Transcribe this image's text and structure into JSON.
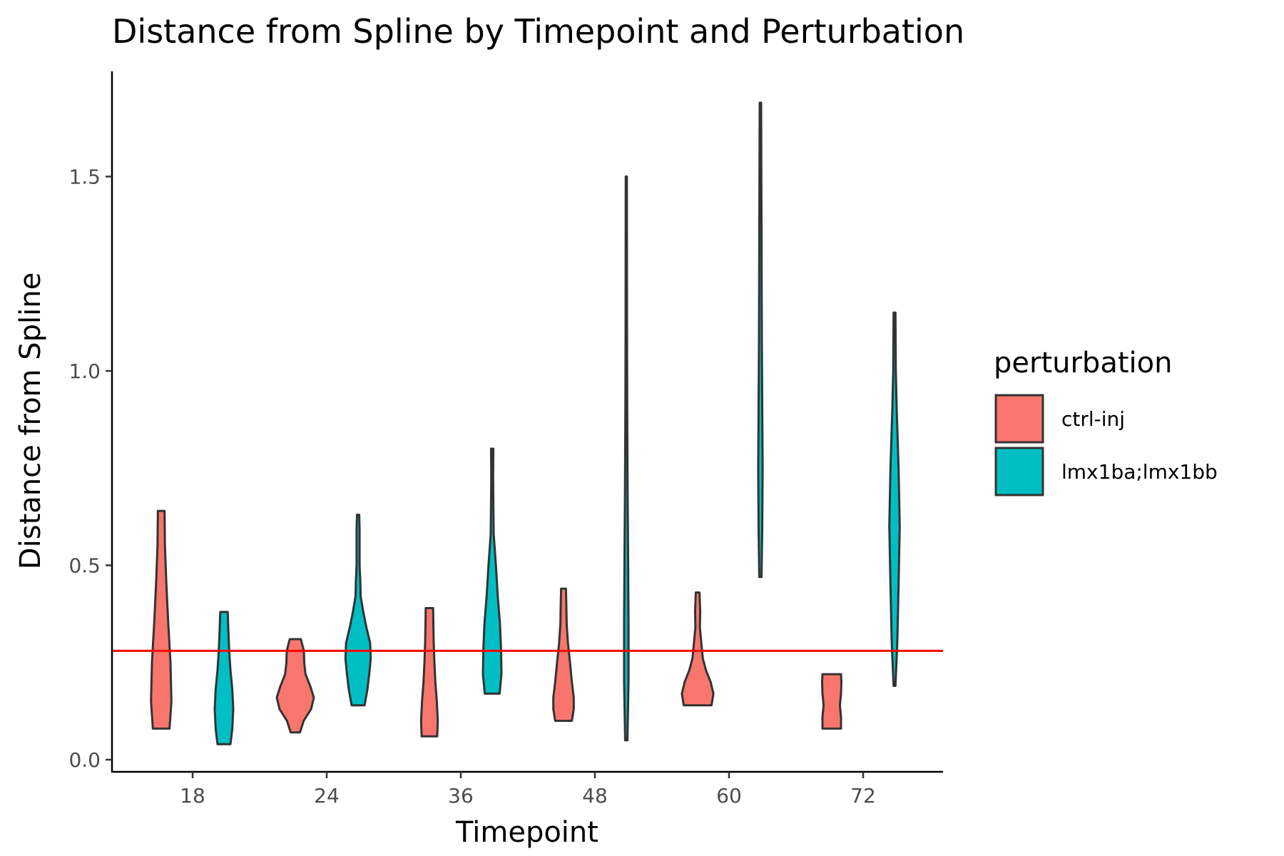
{
  "chart_data": {
    "type": "violin",
    "title": "Distance from Spline by Timepoint and Perturbation",
    "xlabel": "Timepoint",
    "ylabel": "Distance from Spline",
    "categories": [
      "18",
      "24",
      "36",
      "48",
      "60",
      "72"
    ],
    "y_ticks": [
      "0.0",
      "0.5",
      "1.0",
      "1.5"
    ],
    "ylim": [
      -0.03,
      1.77
    ],
    "grid": false,
    "reference_line": {
      "y": 0.28,
      "color": "#ff0000"
    },
    "legend": {
      "title": "perturbation",
      "position": "right",
      "entries": [
        {
          "label": "ctrl-inj",
          "color": "#f8766d"
        },
        {
          "label": "lmx1ba;lmx1bb",
          "color": "#00bfc4"
        }
      ]
    },
    "series": [
      {
        "name": "ctrl-inj",
        "color": "#f8766d",
        "violins": [
          {
            "category": "18",
            "min": 0.08,
            "max": 0.64,
            "profile": [
              [
                0.08,
                0.45
              ],
              [
                0.15,
                0.55
              ],
              [
                0.25,
                0.5
              ],
              [
                0.35,
                0.38
              ],
              [
                0.45,
                0.28
              ],
              [
                0.55,
                0.2
              ],
              [
                0.64,
                0.18
              ]
            ]
          },
          {
            "category": "24",
            "min": 0.07,
            "max": 0.31,
            "profile": [
              [
                0.07,
                0.25
              ],
              [
                0.1,
                0.45
              ],
              [
                0.13,
                0.85
              ],
              [
                0.16,
                1.0
              ],
              [
                0.19,
                0.8
              ],
              [
                0.22,
                0.55
              ],
              [
                0.25,
                0.48
              ],
              [
                0.28,
                0.46
              ],
              [
                0.31,
                0.3
              ]
            ]
          },
          {
            "category": "36",
            "min": 0.06,
            "max": 0.39,
            "profile": [
              [
                0.06,
                0.42
              ],
              [
                0.1,
                0.45
              ],
              [
                0.15,
                0.4
              ],
              [
                0.2,
                0.32
              ],
              [
                0.25,
                0.27
              ],
              [
                0.3,
                0.23
              ],
              [
                0.35,
                0.21
              ],
              [
                0.39,
                0.2
              ]
            ]
          },
          {
            "category": "48",
            "min": 0.1,
            "max": 0.44,
            "profile": [
              [
                0.1,
                0.45
              ],
              [
                0.13,
                0.55
              ],
              [
                0.16,
                0.55
              ],
              [
                0.2,
                0.45
              ],
              [
                0.25,
                0.35
              ],
              [
                0.3,
                0.24
              ],
              [
                0.35,
                0.17
              ],
              [
                0.4,
                0.15
              ],
              [
                0.44,
                0.13
              ]
            ]
          },
          {
            "category": "60",
            "min": 0.14,
            "max": 0.43,
            "profile": [
              [
                0.14,
                0.75
              ],
              [
                0.17,
                0.85
              ],
              [
                0.2,
                0.7
              ],
              [
                0.23,
                0.45
              ],
              [
                0.26,
                0.28
              ],
              [
                0.3,
                0.2
              ],
              [
                0.34,
                0.12
              ],
              [
                0.38,
                0.14
              ],
              [
                0.43,
                0.1
              ]
            ]
          },
          {
            "category": "72",
            "min": 0.08,
            "max": 0.22,
            "profile": [
              [
                0.08,
                0.5
              ],
              [
                0.11,
                0.5
              ],
              [
                0.14,
                0.44
              ],
              [
                0.17,
                0.5
              ],
              [
                0.2,
                0.52
              ],
              [
                0.22,
                0.5
              ]
            ]
          }
        ]
      },
      {
        "name": "lmx1ba;lmx1bb",
        "color": "#00bfc4",
        "violins": [
          {
            "category": "18",
            "min": 0.04,
            "max": 0.38,
            "profile": [
              [
                0.04,
                0.35
              ],
              [
                0.08,
                0.45
              ],
              [
                0.13,
                0.5
              ],
              [
                0.18,
                0.45
              ],
              [
                0.23,
                0.35
              ],
              [
                0.28,
                0.28
              ],
              [
                0.33,
                0.24
              ],
              [
                0.38,
                0.2
              ]
            ]
          },
          {
            "category": "24",
            "min": 0.14,
            "max": 0.63,
            "profile": [
              [
                0.14,
                0.35
              ],
              [
                0.18,
                0.5
              ],
              [
                0.22,
                0.6
              ],
              [
                0.26,
                0.68
              ],
              [
                0.3,
                0.65
              ],
              [
                0.34,
                0.45
              ],
              [
                0.38,
                0.28
              ],
              [
                0.42,
                0.14
              ],
              [
                0.46,
                0.12
              ],
              [
                0.5,
                0.08
              ],
              [
                0.55,
                0.08
              ],
              [
                0.59,
                0.08
              ],
              [
                0.63,
                0.06
              ]
            ]
          },
          {
            "category": "36",
            "min": 0.17,
            "max": 0.8,
            "profile": [
              [
                0.17,
                0.4
              ],
              [
                0.22,
                0.5
              ],
              [
                0.28,
                0.48
              ],
              [
                0.35,
                0.42
              ],
              [
                0.42,
                0.3
              ],
              [
                0.5,
                0.2
              ],
              [
                0.58,
                0.08
              ],
              [
                0.66,
                0.06
              ],
              [
                0.73,
                0.05
              ],
              [
                0.8,
                0.06
              ]
            ]
          },
          {
            "category": "48",
            "min": 0.05,
            "max": 1.5,
            "profile": [
              [
                0.05,
                0.06
              ],
              [
                0.2,
                0.12
              ],
              [
                0.35,
                0.12
              ],
              [
                0.5,
                0.1
              ],
              [
                0.7,
                0.07
              ],
              [
                0.9,
                0.05
              ],
              [
                1.1,
                0.04
              ],
              [
                1.3,
                0.035
              ],
              [
                1.5,
                0.03
              ]
            ]
          },
          {
            "category": "60",
            "min": 0.47,
            "max": 1.69,
            "profile": [
              [
                0.47,
                0.06
              ],
              [
                0.6,
                0.1
              ],
              [
                0.75,
                0.12
              ],
              [
                0.9,
                0.1
              ],
              [
                1.05,
                0.08
              ],
              [
                1.2,
                0.07
              ],
              [
                1.35,
                0.06
              ],
              [
                1.5,
                0.05
              ],
              [
                1.69,
                0.04
              ]
            ]
          },
          {
            "category": "72",
            "min": 0.19,
            "max": 1.15,
            "profile": [
              [
                0.19,
                0.05
              ],
              [
                0.3,
                0.15
              ],
              [
                0.45,
                0.22
              ],
              [
                0.6,
                0.28
              ],
              [
                0.75,
                0.22
              ],
              [
                0.9,
                0.12
              ],
              [
                1.0,
                0.07
              ],
              [
                1.15,
                0.05
              ]
            ]
          }
        ]
      }
    ]
  }
}
